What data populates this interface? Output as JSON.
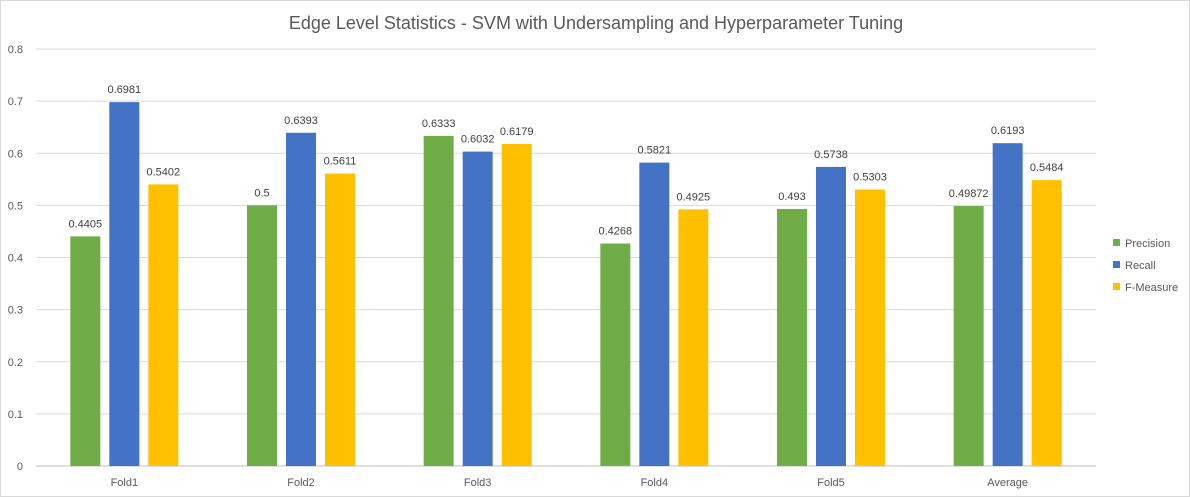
{
  "chart_data": {
    "type": "bar",
    "title": "Edge Level Statistics - SVM with Undersampling and Hyperparameter Tuning",
    "xlabel": "",
    "ylabel": "",
    "categories": [
      "Fold1",
      "Fold2",
      "Fold3",
      "Fold4",
      "Fold5",
      "Average"
    ],
    "series": [
      {
        "name": "Precision",
        "color": "#70ad47",
        "values": [
          0.4405,
          0.5,
          0.6333,
          0.4268,
          0.493,
          0.49872
        ],
        "labels": [
          "0.4405",
          "0.5",
          "0.6333",
          "0.4268",
          "0.493",
          "0.49872"
        ]
      },
      {
        "name": "Recall",
        "color": "#4472c4",
        "values": [
          0.6981,
          0.6393,
          0.6032,
          0.5821,
          0.5738,
          0.6193
        ],
        "labels": [
          "0.6981",
          "0.6393",
          "0.6032",
          "0.5821",
          "0.5738",
          "0.6193"
        ]
      },
      {
        "name": "F-Measure",
        "color": "#ffc000",
        "values": [
          0.5402,
          0.5611,
          0.6179,
          0.4925,
          0.5303,
          0.5484
        ],
        "labels": [
          "0.5402",
          "0.5611",
          "0.6179",
          "0.4925",
          "0.5303",
          "0.5484"
        ]
      }
    ],
    "ylim": [
      0,
      0.8
    ],
    "yticks": [
      0,
      0.1,
      0.2,
      0.3,
      0.4,
      0.5,
      0.6,
      0.7,
      0.8
    ],
    "ytick_labels": [
      "0",
      "0.1",
      "0.2",
      "0.3",
      "0.4",
      "0.5",
      "0.6",
      "0.7",
      "0.8"
    ],
    "grid": true,
    "legend_position": "right"
  }
}
